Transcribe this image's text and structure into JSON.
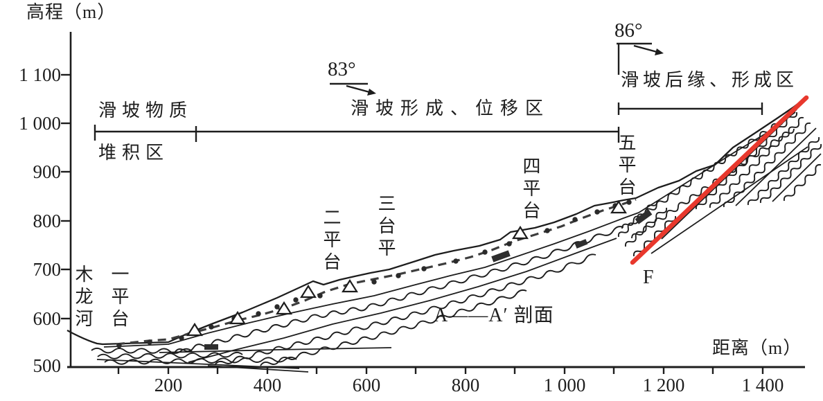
{
  "figure_title": "A——A′ 剖面",
  "axes": {
    "y": {
      "title": "高程（m）",
      "ticks": [
        "1 100",
        "1 000",
        "900",
        "800",
        "700",
        "600",
        "500"
      ]
    },
    "x": {
      "title": "距离（m）",
      "ticks": [
        "200",
        "400",
        "600",
        "800",
        "1 000",
        "1 200",
        "1 400"
      ]
    }
  },
  "zones": {
    "material": "滑坡物质",
    "accumulation": "堆积区",
    "formation_displacement": "滑坡形成、位移区",
    "rear_formation": "滑坡后缘、形成区"
  },
  "angles": {
    "formation_zone": "83°",
    "rear_zone": "86°"
  },
  "platforms": [
    "一平台",
    "二平台",
    "三台平",
    "四平台",
    "五平台"
  ],
  "river": "木龙河",
  "fault": "F",
  "colors": {
    "fault_line": "#e8382d",
    "ink": "#1d1d1d"
  }
}
